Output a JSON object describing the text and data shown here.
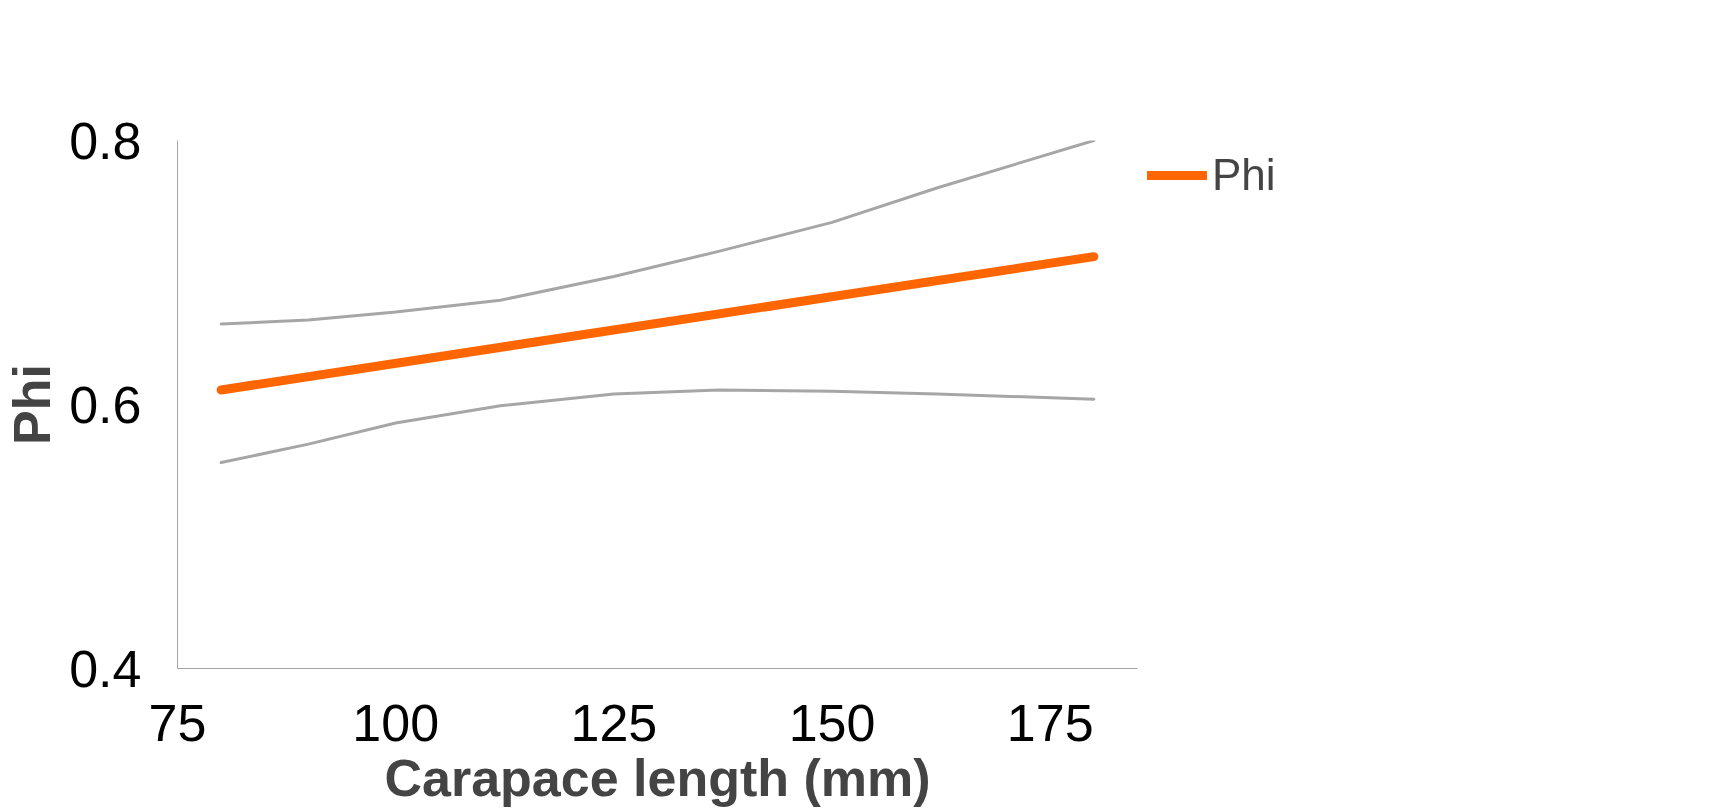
{
  "chart_data": {
    "type": "line",
    "xlabel": "Carapace length (mm)",
    "ylabel": "Phi",
    "xlim": [
      75,
      185
    ],
    "xticks": [
      75,
      100,
      125,
      150,
      175
    ],
    "ylim": [
      0.4,
      0.8
    ],
    "yticks": [
      0.4,
      0.6,
      0.8
    ],
    "grid": false,
    "legend": "top right",
    "marker": "none",
    "line_style": "solid",
    "series": [
      {
        "color": "#a6a6a6",
        "x": [
          80,
          90,
          100,
          112,
          125,
          137,
          150,
          162,
          180
        ],
        "values": [
          0.661,
          0.664,
          0.67,
          0.679,
          0.697,
          0.716,
          0.738,
          0.764,
          0.8
        ]
      },
      {
        "color": "#a6a6a6",
        "x": [
          80,
          90,
          100,
          112,
          125,
          137,
          150,
          162,
          180
        ],
        "values": [
          0.556,
          0.57,
          0.586,
          0.599,
          0.608,
          0.611,
          0.61,
          0.608,
          0.604
        ]
      },
      {
        "name": "Phi",
        "color": "#ff6600",
        "x": [
          80,
          180
        ],
        "values": [
          0.611,
          0.712
        ]
      }
    ]
  }
}
